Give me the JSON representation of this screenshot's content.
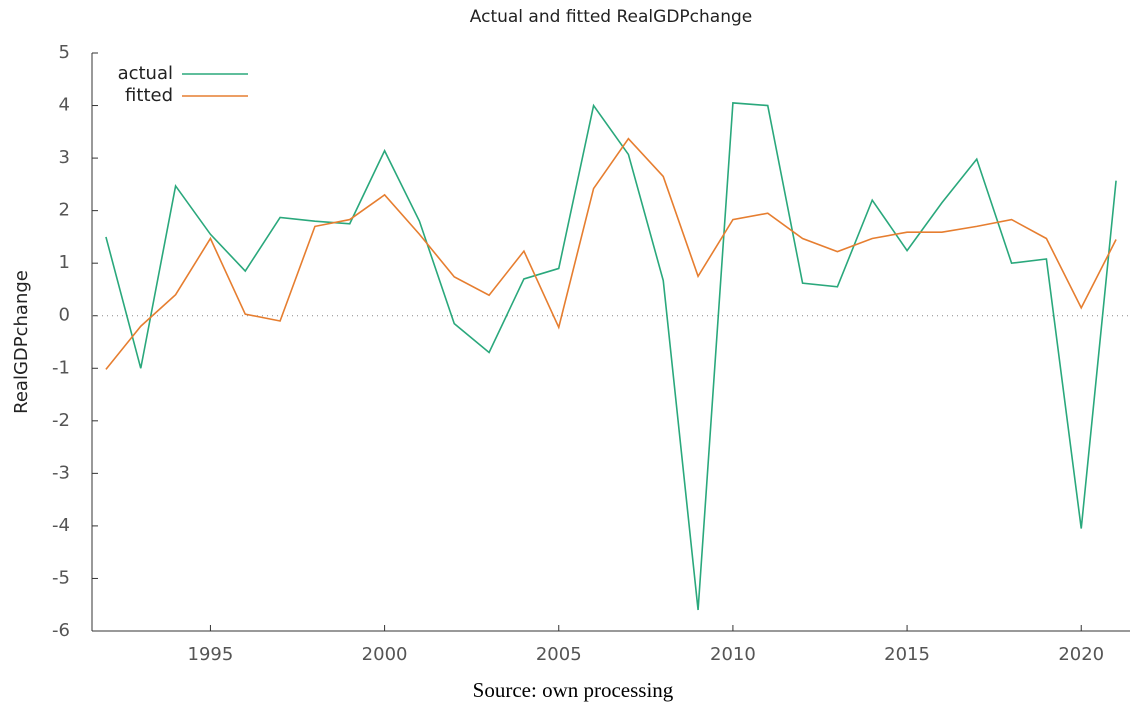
{
  "chart_data": {
    "type": "line",
    "title": "Actual and fitted RealGDPchange",
    "y_label": "RealGDPchange",
    "source": "Source: own processing",
    "x": [
      1992,
      1993,
      1994,
      1995,
      1996,
      1997,
      1998,
      1999,
      2000,
      2001,
      2002,
      2003,
      2004,
      2005,
      2006,
      2007,
      2008,
      2009,
      2010,
      2011,
      2012,
      2013,
      2014,
      2015,
      2016,
      2017,
      2018,
      2019,
      2020,
      2021
    ],
    "series": [
      {
        "name": "actual",
        "color": "#2aa87c",
        "values": [
          1.5,
          -1.0,
          2.47,
          1.55,
          0.85,
          1.87,
          1.8,
          1.75,
          3.14,
          1.8,
          -0.15,
          -0.7,
          0.7,
          0.9,
          4.0,
          3.07,
          0.67,
          -5.6,
          4.05,
          4.0,
          0.62,
          0.55,
          2.2,
          1.24,
          2.15,
          2.98,
          1.0,
          1.08,
          -4.05,
          2.57
        ]
      },
      {
        "name": "fitted",
        "color": "#e67e30",
        "values": [
          -1.02,
          -0.2,
          0.4,
          1.47,
          0.03,
          -0.1,
          1.7,
          1.83,
          2.3,
          1.55,
          0.74,
          0.39,
          1.23,
          -0.22,
          2.42,
          3.37,
          2.65,
          0.75,
          1.83,
          1.95,
          1.47,
          1.22,
          1.47,
          1.59,
          1.59,
          1.7,
          1.83,
          1.47,
          0.15,
          1.45
        ]
      }
    ],
    "xlim": [
      1991.6,
      2021.4
    ],
    "xticks": [
      1995,
      2000,
      2005,
      2010,
      2015,
      2020
    ],
    "ylim": [
      -6,
      5
    ],
    "yticks": [
      -6,
      -5,
      -4,
      -3,
      -2,
      -1,
      0,
      1,
      2,
      3,
      4,
      5
    ],
    "reference_line": 0,
    "legend": "upper-left"
  }
}
